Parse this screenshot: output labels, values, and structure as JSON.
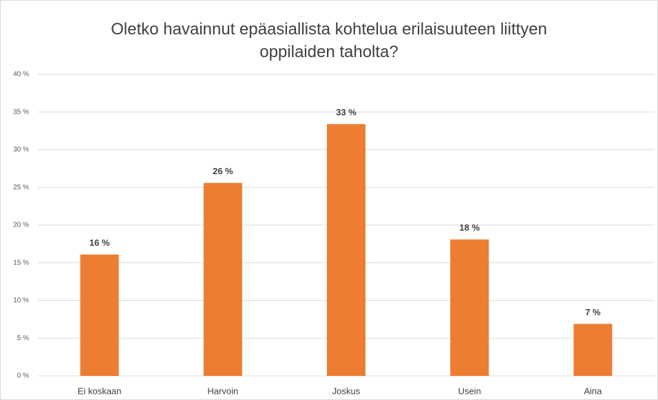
{
  "chart_data": {
    "type": "bar",
    "title": "Oletko havainnut epäasiallista kohtelua erilaisuuteen liittyen oppilaiden taholta?",
    "categories": [
      "Ei koskaan",
      "Harvoin",
      "Joskus",
      "Usein",
      "Aina"
    ],
    "values": [
      16.1,
      25.6,
      33.4,
      18.1,
      6.9
    ],
    "value_labels": [
      "16 %",
      "26 %",
      "33 %",
      "18 %",
      "7 %"
    ],
    "color": "#ed7d31",
    "ylim": [
      0,
      40
    ],
    "yticks": [
      {
        "value": 0,
        "label": "0 %"
      },
      {
        "value": 5,
        "label": "5 %"
      },
      {
        "value": 10,
        "label": "10 %"
      },
      {
        "value": 15,
        "label": "15 %"
      },
      {
        "value": 20,
        "label": "20 %"
      },
      {
        "value": 25,
        "label": "25 %"
      },
      {
        "value": 30,
        "label": "30 %"
      },
      {
        "value": 35,
        "label": "35 %"
      },
      {
        "value": 40,
        "label": "40 %"
      }
    ],
    "grid": true
  }
}
